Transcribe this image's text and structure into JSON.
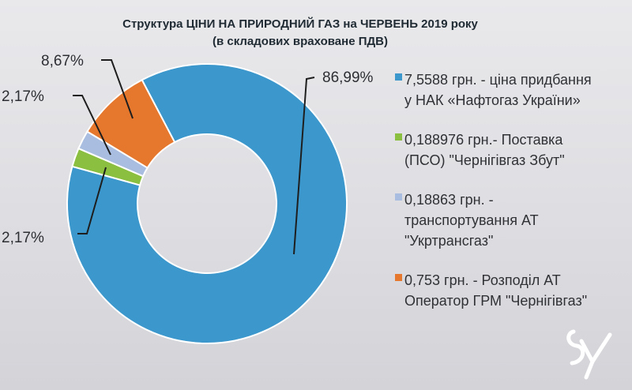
{
  "title": {
    "line1": "Структура ЦІНИ НА ПРИРОДНИЙ ГАЗ на ЧЕРВЕНЬ 2019 року",
    "line2": "(в складових враховане ПДВ)"
  },
  "chart_data": {
    "type": "pie",
    "donut": true,
    "title": "Структура ЦІНИ НА ПРИРОДНИЙ ГАЗ на ЧЕРВЕНЬ 2019 року",
    "subtitle": "(в складових враховане ПДВ)",
    "legend_position": "right",
    "slices": [
      {
        "key": "naftogaz",
        "value": 86.99,
        "label": "86,99%",
        "color": "#3b97cc",
        "legend": [
          "7,5588 грн. - ціна придбання",
          "у НАК «Нафтогаз України»"
        ]
      },
      {
        "key": "postavka",
        "value": 2.17,
        "label": "2,17%",
        "color": "#8bbf3f",
        "legend": [
          "0,188976 грн.- Поставка",
          "(ПСО) \"Чернігівгаз Збут\""
        ]
      },
      {
        "key": "transport",
        "value": 2.17,
        "label": "2,17%",
        "color": "#a9bde0",
        "legend": [
          "0,18863 грн. -",
          "транспортування АТ",
          "\"Укртрансгаз\""
        ]
      },
      {
        "key": "rozpodil",
        "value": 8.67,
        "label": "8,67%",
        "color": "#e6782d",
        "legend": [
          "0,753 грн. - Розподіл АТ",
          "Оператор ГРМ \"Чернігівгаз\""
        ]
      }
    ]
  },
  "logo": {
    "color": "#ffffff"
  }
}
